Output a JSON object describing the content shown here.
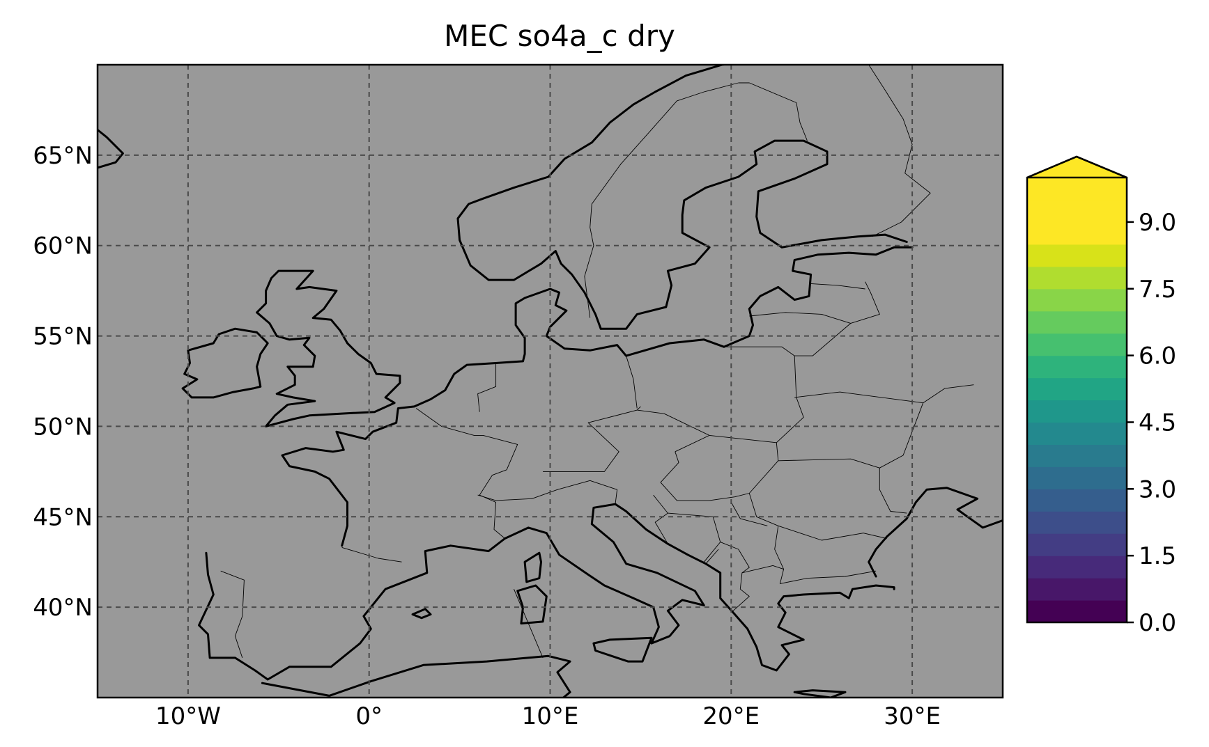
{
  "title": "MEC so4a_c dry",
  "background_color": "#999999",
  "chart_data": {
    "type": "heatmap",
    "title": "MEC so4a_c dry",
    "projection": "PlateCarree",
    "lon_range": [
      -15,
      35
    ],
    "lat_range": [
      35,
      70
    ],
    "lon_ticks": [
      -10,
      0,
      10,
      20,
      30
    ],
    "lon_tick_labels": [
      "10°W",
      "0°",
      "10°E",
      "20°E",
      "30°E"
    ],
    "lat_ticks": [
      40,
      45,
      50,
      55,
      60,
      65
    ],
    "lat_tick_labels": [
      "40°N",
      "45°N",
      "50°N",
      "55°N",
      "60°N",
      "65°N"
    ],
    "gridlines": true,
    "field_values": "no data visible (uniform gray)",
    "colorbar": {
      "cmap": "viridis",
      "range": [
        0.0,
        10.0
      ],
      "extend": "max",
      "n_levels": 20,
      "ticks": [
        0.0,
        1.5,
        3.0,
        4.5,
        6.0,
        7.5,
        9.0
      ],
      "tick_labels": [
        "0.0",
        "1.5",
        "3.0",
        "4.5",
        "6.0",
        "7.5",
        "9.0"
      ],
      "extend_color": "#fde725",
      "colors": [
        "#440154",
        "#481769",
        "#472a7a",
        "#433d84",
        "#3d4e8a",
        "#355e8d",
        "#2e6d8e",
        "#297b8e",
        "#23898e",
        "#1f978b",
        "#21a585",
        "#2eb37c",
        "#46c06f",
        "#65cb5e",
        "#89d548",
        "#b0dd2f",
        "#d8e219",
        "#fde725",
        "#fde725",
        "#fde725"
      ]
    }
  }
}
